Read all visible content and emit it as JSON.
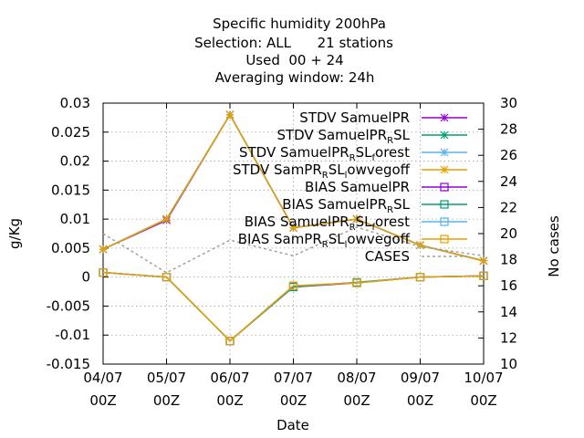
{
  "chart_data": {
    "type": "line",
    "title_lines": [
      "Specific humidity 200hPa",
      "Selection: ALL      21 stations",
      "Used  00 + 24",
      "Averaging window: 24h"
    ],
    "xlabel": "Date",
    "ylabel": "g/Kg",
    "y2label": "No cases",
    "categories": [
      [
        "04/07",
        "00Z"
      ],
      [
        "05/07",
        "00Z"
      ],
      [
        "06/07",
        "00Z"
      ],
      [
        "07/07",
        "00Z"
      ],
      [
        "08/07",
        "00Z"
      ],
      [
        "09/07",
        "00Z"
      ],
      [
        "10/07",
        "00Z"
      ]
    ],
    "ylim": [
      -0.015,
      0.03
    ],
    "yticks": [
      "0.03",
      "0.025",
      "0.02",
      "0.015",
      "0.01",
      "0.005",
      "0",
      "-0.005",
      "-0.01",
      "-0.015"
    ],
    "y2lim": [
      10,
      30
    ],
    "y2ticks": [
      "30",
      "28",
      "26",
      "24",
      "22",
      "20",
      "18",
      "16",
      "14",
      "12",
      "10"
    ],
    "grid": true,
    "legend_position": "top-right",
    "series": [
      {
        "name": "STDV SamuelPR",
        "name_parts": [
          [
            "STDV SamuelPR",
            ""
          ]
        ],
        "color": "#9400d3",
        "marker": "star",
        "axis": "y",
        "values": [
          0.0048,
          0.0098,
          0.028,
          0.0085,
          0.01,
          0.0055,
          0.0028
        ]
      },
      {
        "name": "STDV SamuelPR_RSL",
        "name_parts": [
          [
            "STDV SamuelPR",
            ""
          ],
          [
            "R",
            "sub"
          ],
          [
            "SL",
            ""
          ]
        ],
        "color": "#009e73",
        "marker": "star",
        "axis": "y",
        "values": [
          0.0048,
          0.01,
          0.028,
          0.0085,
          0.01,
          0.0055,
          0.0028
        ]
      },
      {
        "name": "STDV SamuelPR_RSL_forest",
        "name_parts": [
          [
            "STDV SamuelPR",
            ""
          ],
          [
            "R",
            "sub"
          ],
          [
            "SL",
            ""
          ],
          [
            "f",
            "sub"
          ],
          [
            "orest",
            ""
          ]
        ],
        "color": "#56b4e9",
        "marker": "star",
        "axis": "y",
        "values": [
          0.0048,
          0.01,
          0.028,
          0.0085,
          0.01,
          0.0055,
          0.0028
        ]
      },
      {
        "name": "STDV SamPR_RSL_lowvegoff",
        "name_parts": [
          [
            "STDV SamPR",
            ""
          ],
          [
            "R",
            "sub"
          ],
          [
            "SL",
            ""
          ],
          [
            "l",
            "sub"
          ],
          [
            "owvegoff",
            ""
          ]
        ],
        "color": "#e69f00",
        "marker": "star",
        "axis": "y",
        "values": [
          0.0048,
          0.01,
          0.028,
          0.0085,
          0.01,
          0.0055,
          0.0028
        ]
      },
      {
        "name": "BIAS SamuelPR",
        "name_parts": [
          [
            "BIAS SamuelPR",
            ""
          ]
        ],
        "color": "#9400d3",
        "marker": "square",
        "axis": "y",
        "values": [
          0.0008,
          0.0,
          -0.011,
          -0.0017,
          -0.001,
          0.0,
          0.0002
        ]
      },
      {
        "name": "BIAS SamuelPR_RSL",
        "name_parts": [
          [
            "BIAS SamuelPR",
            ""
          ],
          [
            "R",
            "sub"
          ],
          [
            "SL",
            ""
          ]
        ],
        "color": "#009e73",
        "marker": "square",
        "axis": "y",
        "values": [
          0.0008,
          0.0,
          -0.011,
          -0.0017,
          -0.0009,
          0.0,
          0.0002
        ]
      },
      {
        "name": "BIAS SamuelPR_RSL_forest",
        "name_parts": [
          [
            "BIAS SamuelPR",
            ""
          ],
          [
            "R",
            "sub"
          ],
          [
            "SL",
            ""
          ],
          [
            "f",
            "sub"
          ],
          [
            "orest",
            ""
          ]
        ],
        "color": "#56b4e9",
        "marker": "square",
        "axis": "y",
        "values": [
          0.0008,
          0.0,
          -0.011,
          -0.0015,
          -0.001,
          0.0,
          0.0002
        ]
      },
      {
        "name": "BIAS SamPR_RSL_lowvegoff",
        "name_parts": [
          [
            "BIAS SamPR",
            ""
          ],
          [
            "R",
            "sub"
          ],
          [
            "SL",
            ""
          ],
          [
            "l",
            "sub"
          ],
          [
            "owvegoff",
            ""
          ]
        ],
        "color": "#e69f00",
        "marker": "square",
        "axis": "y",
        "values": [
          0.0008,
          0.0,
          -0.011,
          -0.0015,
          -0.001,
          0.0,
          0.0002
        ]
      },
      {
        "name": "CASES",
        "name_parts": [
          [
            "CASES",
            ""
          ]
        ],
        "color": "#a0a0a0",
        "marker": "none",
        "dashed": true,
        "axis": "y2",
        "values": [
          20,
          17,
          19.5,
          18.3,
          20.5,
          19,
          18.3
        ]
      }
    ]
  }
}
